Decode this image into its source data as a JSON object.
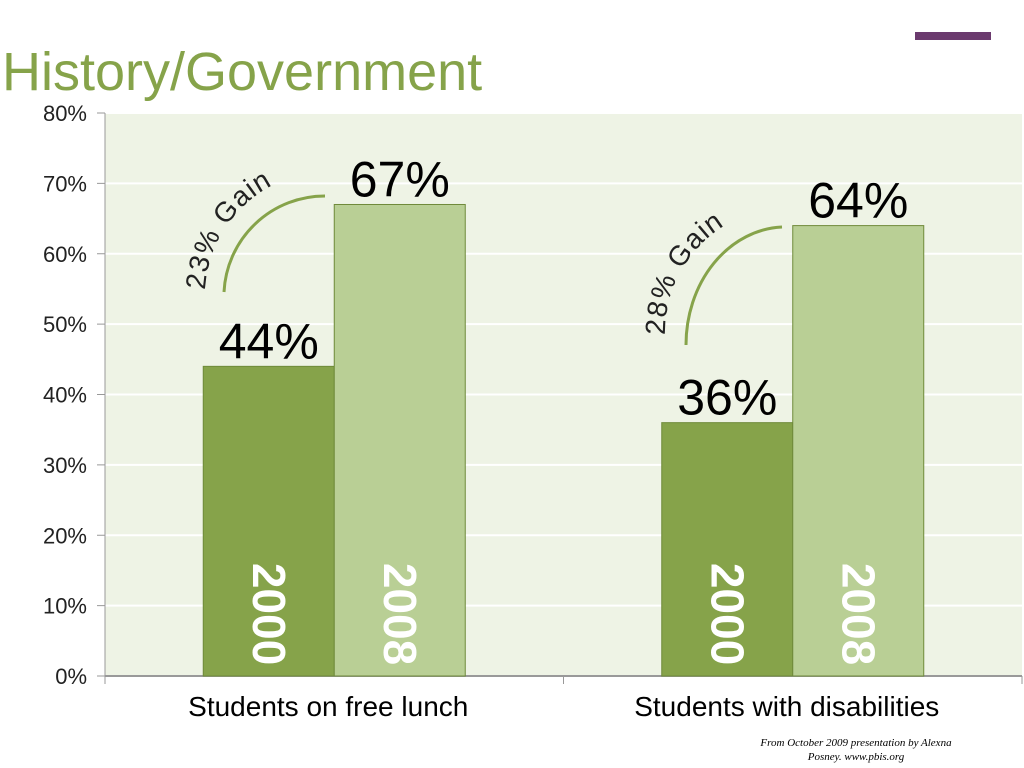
{
  "chart_data": {
    "type": "bar",
    "title": "History/Government",
    "categories": [
      "Students on free lunch",
      "Students with disabilities"
    ],
    "series": [
      {
        "name": "2000",
        "color": "#86a34a",
        "values": [
          44,
          36
        ],
        "value_labels": [
          "44%",
          "36%"
        ]
      },
      {
        "name": "2008",
        "color": "#b9cf95",
        "values": [
          67,
          64
        ],
        "value_labels": [
          "67%",
          "64%"
        ]
      }
    ],
    "ylim": [
      0,
      80
    ],
    "yticks": [
      {
        "value": 0,
        "label": "0%"
      },
      {
        "value": 10,
        "label": "10%"
      },
      {
        "value": 20,
        "label": "20%"
      },
      {
        "value": 30,
        "label": "30%"
      },
      {
        "value": 40,
        "label": "40%"
      },
      {
        "value": 50,
        "label": "50%"
      },
      {
        "value": 60,
        "label": "60%"
      },
      {
        "value": 70,
        "label": "70%"
      },
      {
        "value": 80,
        "label": "80%"
      }
    ],
    "grid": true,
    "annotations": [
      "23% Gain",
      "28% Gain"
    ],
    "source": [
      "From October 2009 presentation by Alexna",
      "Posney. www.pbis.org"
    ]
  }
}
